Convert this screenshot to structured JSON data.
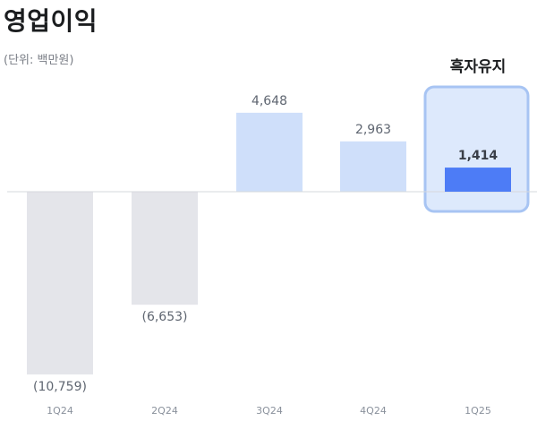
{
  "title": "영업이익",
  "unit_label": "(단위: 백만원)",
  "colors": {
    "negative": "#e4e5ea",
    "positive": "#cfdffa",
    "highlight": "#4d7cf6",
    "highlight_box_fill": "#dde9fc",
    "highlight_box_stroke": "#a7c4f3",
    "baseline": "#d6d8dc"
  },
  "chart_data": {
    "type": "bar",
    "categories": [
      "1Q24",
      "2Q24",
      "3Q24",
      "4Q24",
      "1Q25"
    ],
    "values": [
      -10759,
      -6653,
      4648,
      2963,
      1414
    ],
    "labels": [
      "(10,759)",
      "(6,653)",
      "4,648",
      "2,963",
      "1,414"
    ],
    "highlight_index": 4,
    "annotation": "흑자유지",
    "ylim": [
      -11000,
      5000
    ],
    "grid": false,
    "legend": "none"
  }
}
